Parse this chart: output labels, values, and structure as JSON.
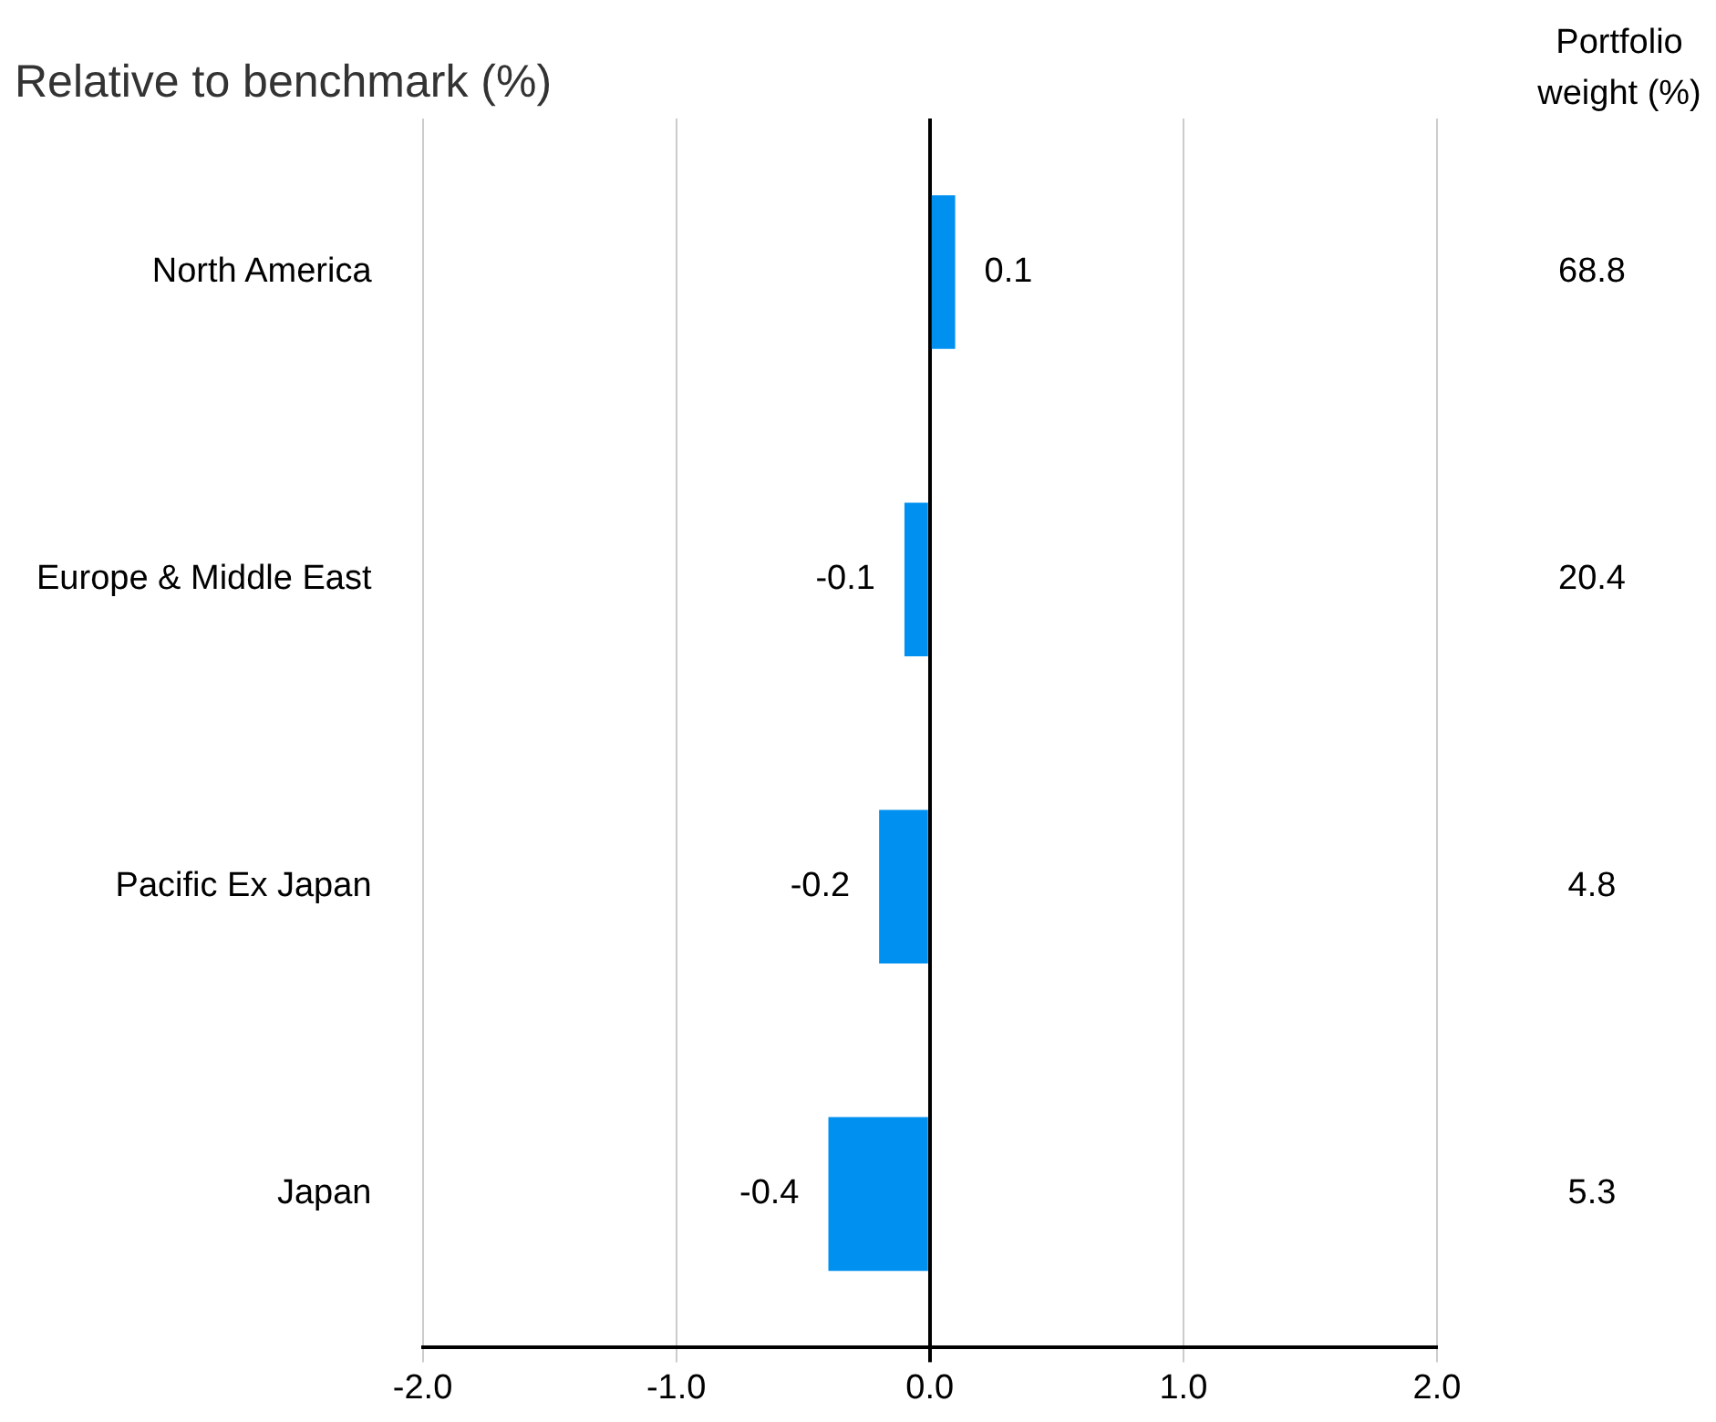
{
  "chart_data": {
    "type": "bar",
    "orientation": "horizontal",
    "subtitle": "Relative to benchmark (%)",
    "y2label": "Portfolio weight (%)",
    "categories": [
      "North America",
      "Europe & Middle East",
      "Pacific Ex Japan",
      "Japan"
    ],
    "values": [
      0.1,
      -0.1,
      -0.2,
      -0.4
    ],
    "color": "#0090f0",
    "data_labels": true,
    "xlim": [
      -2,
      2
    ],
    "xticks": [
      {
        "value": -2,
        "label": "-2.0"
      },
      {
        "value": -1,
        "label": "-1.0"
      },
      {
        "value": 0,
        "label": "0.0"
      },
      {
        "value": 1,
        "label": "1.0"
      },
      {
        "value": 2,
        "label": "2.0"
      }
    ],
    "grid": "x",
    "legend": false,
    "annotations": [
      "68.8",
      "20.4",
      "4.8",
      "5.3"
    ]
  }
}
